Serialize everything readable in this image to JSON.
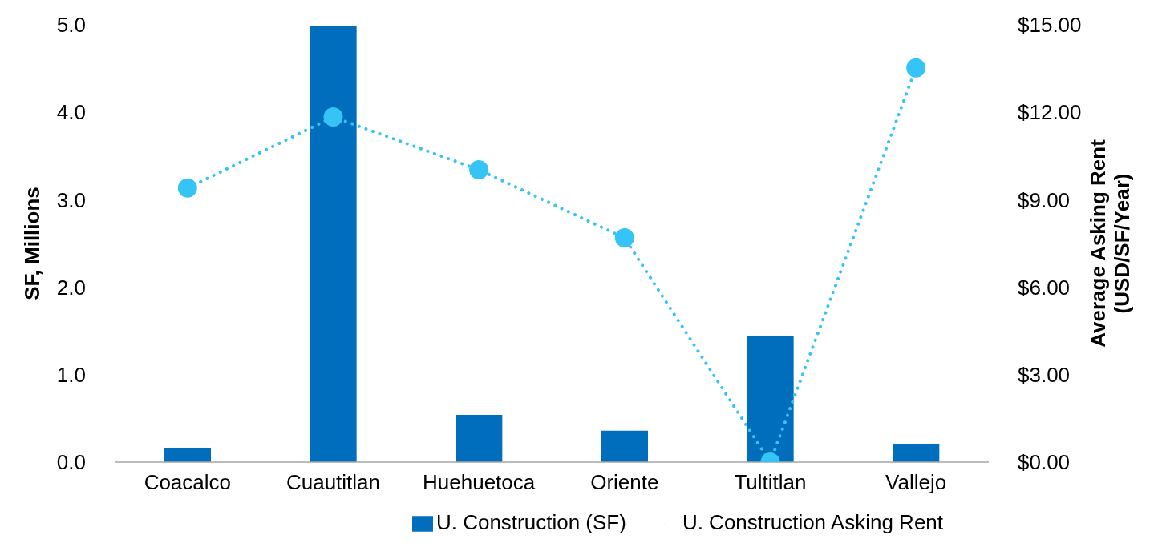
{
  "chart_data": {
    "type": "bar",
    "categories": [
      "Coacalco",
      "Cuautitlan",
      "Huehuetoca",
      "Oriente",
      "Tultitlan",
      "Vallejo"
    ],
    "ylabel": "SF, Millions",
    "y2label": "Average Asking Rent\n(USD/SF/Year)",
    "ylim": [
      0,
      5
    ],
    "yticks": [
      {
        "value": 0,
        "label": "0.0"
      },
      {
        "value": 1,
        "label": "1.0"
      },
      {
        "value": 2,
        "label": "2.0"
      },
      {
        "value": 3,
        "label": "3.0"
      },
      {
        "value": 4,
        "label": "4.0"
      },
      {
        "value": 5,
        "label": "5.0"
      }
    ],
    "y2lim": [
      0,
      15
    ],
    "y2ticks": [
      {
        "value": 0,
        "label": "$0.00"
      },
      {
        "value": 3,
        "label": "$3.00"
      },
      {
        "value": 6,
        "label": "$6.00"
      },
      {
        "value": 9,
        "label": "$9.00"
      },
      {
        "value": 12,
        "label": "$12.00"
      },
      {
        "value": 15,
        "label": "$15.00"
      }
    ],
    "series": [
      {
        "name": "U. Construction (SF)",
        "color": "#006ebc",
        "values": [
          0.16,
          4.99,
          0.54,
          0.36,
          1.44,
          0.21
        ]
      },
      {
        "name": "U. Construction Asking Rent",
        "type": "line",
        "axis": "y2",
        "color": "#35c4f5",
        "marker": "circle",
        "line_style": "dotted",
        "values": [
          9.4,
          11.84,
          10.03,
          7.69,
          0,
          13.52
        ]
      }
    ],
    "grid": false,
    "legend": "bottom"
  }
}
